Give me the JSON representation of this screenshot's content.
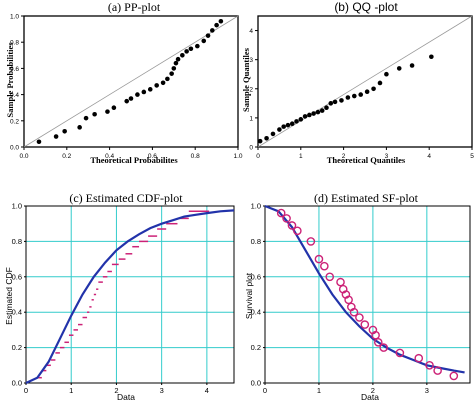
{
  "chart_data": [
    {
      "type": "scatter",
      "title": "(a) PP-plot",
      "xlabel": "Theoretical Probabilites",
      "ylabel": "Sample Probabilities",
      "xlim": [
        0,
        1
      ],
      "ylim": [
        0,
        1
      ],
      "xticks": [
        "0.0",
        "0.2",
        "0.4",
        "0.6",
        "0.8",
        "1.0"
      ],
      "yticks": [
        "0.0",
        "0.2",
        "0.4",
        "0.6",
        "0.8",
        "1.0"
      ],
      "grid": false,
      "reference_line": "y = x",
      "points": [
        [
          0.07,
          0.04
        ],
        [
          0.15,
          0.08
        ],
        [
          0.19,
          0.12
        ],
        [
          0.26,
          0.15
        ],
        [
          0.29,
          0.22
        ],
        [
          0.33,
          0.25
        ],
        [
          0.39,
          0.27
        ],
        [
          0.42,
          0.3
        ],
        [
          0.48,
          0.35
        ],
        [
          0.5,
          0.37
        ],
        [
          0.53,
          0.4
        ],
        [
          0.56,
          0.42
        ],
        [
          0.59,
          0.44
        ],
        [
          0.62,
          0.47
        ],
        [
          0.65,
          0.49
        ],
        [
          0.67,
          0.52
        ],
        [
          0.69,
          0.56
        ],
        [
          0.7,
          0.6
        ],
        [
          0.71,
          0.64
        ],
        [
          0.72,
          0.67
        ],
        [
          0.74,
          0.7
        ],
        [
          0.76,
          0.73
        ],
        [
          0.78,
          0.75
        ],
        [
          0.81,
          0.77
        ],
        [
          0.84,
          0.81
        ],
        [
          0.86,
          0.85
        ],
        [
          0.88,
          0.89
        ],
        [
          0.9,
          0.93
        ],
        [
          0.92,
          0.96
        ]
      ]
    },
    {
      "type": "scatter",
      "title": "(b) QQ -plot",
      "xlabel": "Theoretical Quantiles",
      "ylabel": "Sample Quantiles",
      "xlim": [
        0,
        5
      ],
      "ylim": [
        0,
        4.5
      ],
      "xticks": [
        "0",
        "1",
        "2",
        "3",
        "4",
        "5"
      ],
      "yticks": [
        "0",
        "1",
        "2",
        "3",
        "4"
      ],
      "grid": false,
      "reference_line": "y = 0.9x",
      "points": [
        [
          0.05,
          0.2
        ],
        [
          0.2,
          0.3
        ],
        [
          0.35,
          0.45
        ],
        [
          0.5,
          0.6
        ],
        [
          0.6,
          0.7
        ],
        [
          0.7,
          0.75
        ],
        [
          0.8,
          0.8
        ],
        [
          0.9,
          0.88
        ],
        [
          1.0,
          0.95
        ],
        [
          1.1,
          1.05
        ],
        [
          1.2,
          1.1
        ],
        [
          1.3,
          1.15
        ],
        [
          1.4,
          1.2
        ],
        [
          1.5,
          1.25
        ],
        [
          1.6,
          1.35
        ],
        [
          1.7,
          1.5
        ],
        [
          1.8,
          1.55
        ],
        [
          1.95,
          1.6
        ],
        [
          2.1,
          1.7
        ],
        [
          2.25,
          1.75
        ],
        [
          2.4,
          1.8
        ],
        [
          2.55,
          1.9
        ],
        [
          2.7,
          2.0
        ],
        [
          2.85,
          2.2
        ],
        [
          3.0,
          2.5
        ],
        [
          3.3,
          2.7
        ],
        [
          3.6,
          2.8
        ],
        [
          4.05,
          3.1
        ]
      ]
    },
    {
      "type": "line",
      "title": "(c) Estimated CDF-plot",
      "xlabel": "Data",
      "ylabel": "Estimated CDF",
      "xlim": [
        0,
        4.6
      ],
      "ylim": [
        0,
        1.0
      ],
      "xticks": [
        "0",
        "1",
        "2",
        "3",
        "4"
      ],
      "yticks": [
        "0.0",
        "0.2",
        "0.4",
        "0.6",
        "0.8",
        "1.0"
      ],
      "grid": true,
      "colors": {
        "fitted": "#2233aa",
        "empirical": "#cc2277",
        "grid": "#33cccc"
      },
      "fitted_curve": [
        [
          0.0,
          0.0
        ],
        [
          0.25,
          0.03
        ],
        [
          0.5,
          0.12
        ],
        [
          0.75,
          0.25
        ],
        [
          1.0,
          0.38
        ],
        [
          1.25,
          0.5
        ],
        [
          1.5,
          0.6
        ],
        [
          1.75,
          0.68
        ],
        [
          2.0,
          0.75
        ],
        [
          2.25,
          0.8
        ],
        [
          2.5,
          0.84
        ],
        [
          2.75,
          0.875
        ],
        [
          3.0,
          0.9
        ],
        [
          3.25,
          0.92
        ],
        [
          3.5,
          0.94
        ],
        [
          3.75,
          0.95
        ],
        [
          4.0,
          0.96
        ],
        [
          4.3,
          0.97
        ],
        [
          4.6,
          0.975
        ]
      ],
      "empirical_steps": [
        [
          0.25,
          0.03
        ],
        [
          0.35,
          0.07
        ],
        [
          0.45,
          0.1
        ],
        [
          0.55,
          0.13
        ],
        [
          0.65,
          0.17
        ],
        [
          0.75,
          0.2
        ],
        [
          0.85,
          0.23
        ],
        [
          0.95,
          0.27
        ],
        [
          1.05,
          0.3
        ],
        [
          1.15,
          0.33
        ],
        [
          1.25,
          0.37
        ],
        [
          1.35,
          0.4
        ],
        [
          1.4,
          0.43
        ],
        [
          1.45,
          0.47
        ],
        [
          1.5,
          0.5
        ],
        [
          1.55,
          0.53
        ],
        [
          1.6,
          0.57
        ],
        [
          1.7,
          0.6
        ],
        [
          1.8,
          0.63
        ],
        [
          1.9,
          0.67
        ],
        [
          2.05,
          0.7
        ],
        [
          2.2,
          0.73
        ],
        [
          2.35,
          0.77
        ],
        [
          2.5,
          0.8
        ],
        [
          2.7,
          0.83
        ],
        [
          2.9,
          0.87
        ],
        [
          3.1,
          0.9
        ],
        [
          3.35,
          0.93
        ],
        [
          3.6,
          0.97
        ]
      ]
    },
    {
      "type": "scatter",
      "title": "(d) Estimated SF-plot",
      "xlabel": "Data",
      "ylabel": "Survival plot",
      "xlim": [
        0,
        3.8
      ],
      "ylim": [
        0,
        1.0
      ],
      "xticks": [
        "0",
        "1",
        "2",
        "3"
      ],
      "yticks": [
        "0.0",
        "0.2",
        "0.4",
        "0.6",
        "0.8",
        "1.0"
      ],
      "grid": true,
      "colors": {
        "fitted": "#2233aa",
        "markers": "#cc2277",
        "grid": "#33cccc"
      },
      "fitted_curve": [
        [
          0.0,
          1.0
        ],
        [
          0.25,
          0.97
        ],
        [
          0.5,
          0.88
        ],
        [
          0.75,
          0.75
        ],
        [
          1.0,
          0.62
        ],
        [
          1.25,
          0.5
        ],
        [
          1.5,
          0.4
        ],
        [
          1.75,
          0.32
        ],
        [
          2.0,
          0.25
        ],
        [
          2.25,
          0.2
        ],
        [
          2.5,
          0.16
        ],
        [
          2.75,
          0.13
        ],
        [
          3.0,
          0.1
        ],
        [
          3.25,
          0.085
        ],
        [
          3.5,
          0.07
        ],
        [
          3.7,
          0.06
        ]
      ],
      "points": [
        [
          0.3,
          0.96
        ],
        [
          0.4,
          0.93
        ],
        [
          0.5,
          0.89
        ],
        [
          0.6,
          0.86
        ],
        [
          0.85,
          0.8
        ],
        [
          1.0,
          0.7
        ],
        [
          1.1,
          0.66
        ],
        [
          1.2,
          0.6
        ],
        [
          1.4,
          0.57
        ],
        [
          1.45,
          0.53
        ],
        [
          1.5,
          0.5
        ],
        [
          1.55,
          0.47
        ],
        [
          1.6,
          0.43
        ],
        [
          1.65,
          0.4
        ],
        [
          1.75,
          0.37
        ],
        [
          1.85,
          0.33
        ],
        [
          2.0,
          0.3
        ],
        [
          2.05,
          0.27
        ],
        [
          2.1,
          0.23
        ],
        [
          2.2,
          0.2
        ],
        [
          2.5,
          0.17
        ],
        [
          2.85,
          0.14
        ],
        [
          3.05,
          0.1
        ],
        [
          3.2,
          0.07
        ],
        [
          3.5,
          0.04
        ]
      ]
    }
  ]
}
